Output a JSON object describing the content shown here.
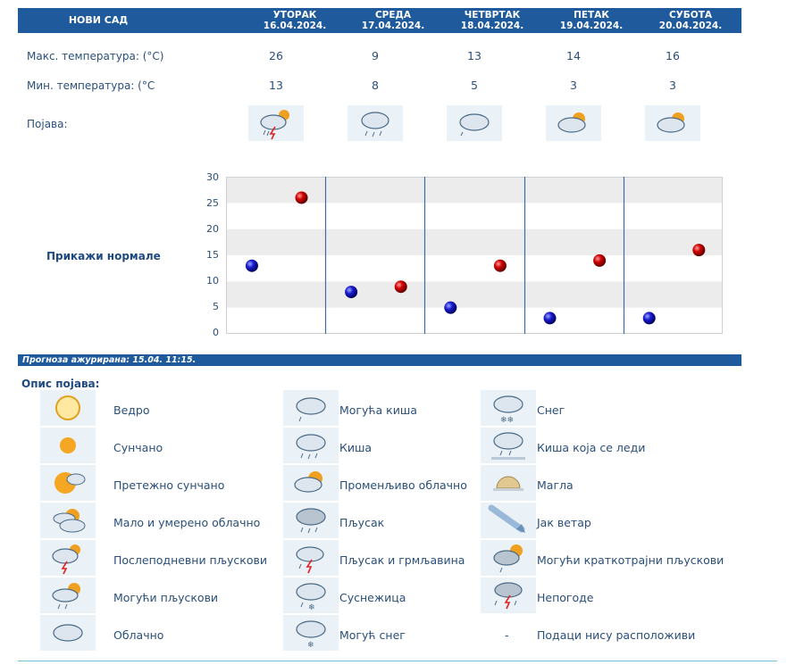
{
  "header": {
    "city": "НОВИ САД",
    "days": [
      {
        "name": "УТОРАК",
        "date": "16.04.2024."
      },
      {
        "name": "СРЕДА",
        "date": "17.04.2024."
      },
      {
        "name": "ЧЕТВРТАК",
        "date": "18.04.2024."
      },
      {
        "name": "ПЕТАК",
        "date": "19.04.2024."
      },
      {
        "name": "СУБОТА",
        "date": "20.04.2024."
      }
    ]
  },
  "rows": {
    "max_label": "Макс. температура: (°C)",
    "min_label": "Мин. температура: (°C",
    "phenomenon_label": "Појава:",
    "max": [
      "26",
      "9",
      "13",
      "14",
      "16"
    ],
    "min": [
      "13",
      "8",
      "5",
      "3",
      "3"
    ],
    "icons": [
      "afternoon-showers-icon",
      "rain-icon",
      "cloudy-icon",
      "partly-cloudy-icon",
      "partly-cloudy-icon"
    ]
  },
  "normals_label": "Прикажи нормале",
  "chart_data": {
    "type": "scatter",
    "ylim": [
      0,
      30
    ],
    "yticks": [
      "0",
      "5",
      "10",
      "15",
      "20",
      "25",
      "30"
    ],
    "grid": true,
    "series": [
      {
        "values": [
          13,
          8,
          5,
          3,
          3
        ],
        "color": "#1010a0"
      },
      {
        "values": [
          26,
          9,
          13,
          14,
          16
        ],
        "color": "#c00000"
      }
    ]
  },
  "updated": "Прогноза ажурирана:  15.04. 11:15.",
  "legend": {
    "title": "Опис појава:",
    "items": [
      {
        "label": "Ведро",
        "icon": "clear-sun-icon"
      },
      {
        "label": "Могућа киша",
        "icon": "possible-rain-icon"
      },
      {
        "label": "Снег",
        "icon": "snow-icon"
      },
      {
        "label": "Сунчано",
        "icon": "sunny-icon"
      },
      {
        "label": "Киша",
        "icon": "rain-icon"
      },
      {
        "label": "Киша која се леди",
        "icon": "freezing-rain-icon"
      },
      {
        "label": "Претежно сунчано",
        "icon": "mostly-sunny-icon"
      },
      {
        "label": "Променљиво облачно",
        "icon": "variable-cloudy-icon"
      },
      {
        "label": "Магла",
        "icon": "fog-icon"
      },
      {
        "label": "Мало и умерено облачно",
        "icon": "partly-cloudy-icon"
      },
      {
        "label": "Пљусак",
        "icon": "shower-icon"
      },
      {
        "label": "Јак ветар",
        "icon": "strong-wind-icon"
      },
      {
        "label": "Послеподневни пљускови",
        "icon": "afternoon-showers-icon"
      },
      {
        "label": "Пљусак и грмљавина",
        "icon": "thunderstorm-icon"
      },
      {
        "label": "Могући краткотрајни пљускови",
        "icon": "brief-showers-icon"
      },
      {
        "label": "Могући пљускови",
        "icon": "possible-showers-icon"
      },
      {
        "label": "Суснежица",
        "icon": "sleet-icon"
      },
      {
        "label": "Непогоде",
        "icon": "severe-weather-icon"
      },
      {
        "label": "Облачно",
        "icon": "cloudy-icon"
      },
      {
        "label": "Могућ снег",
        "icon": "possible-snow-icon"
      },
      {
        "label": "Подаци нису расположиви",
        "icon": "no-data-dash",
        "dash": "-"
      }
    ]
  }
}
